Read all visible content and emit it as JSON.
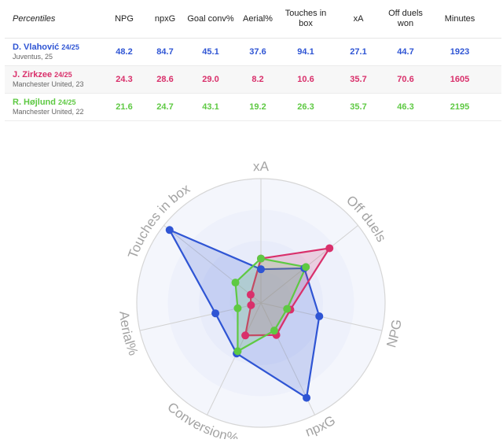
{
  "table": {
    "percentiles_label": "Percentiles",
    "columns": [
      "NPG",
      "npxG",
      "Goal conv%",
      "Aerial%",
      "Touches in box",
      "xA",
      "Off duels won",
      "Minutes"
    ],
    "rows": [
      {
        "name": "D. Vlahović",
        "season": "24/25",
        "team": "Juventus, 25",
        "color": "#2f55d4",
        "values": [
          "48.2",
          "84.7",
          "45.1",
          "37.6",
          "94.1",
          "27.1",
          "44.7",
          "1923"
        ]
      },
      {
        "name": "J. Zirkzee",
        "season": "24/25",
        "team": "Manchester United, 23",
        "color": "#d9306b",
        "values": [
          "24.3",
          "28.6",
          "29.0",
          "8.2",
          "10.6",
          "35.7",
          "70.6",
          "1605"
        ]
      },
      {
        "name": "R. Højlund",
        "season": "24/25",
        "team": "Manchester United, 22",
        "color": "#5ec943",
        "values": [
          "21.6",
          "24.7",
          "43.1",
          "19.2",
          "26.3",
          "35.7",
          "46.3",
          "2195"
        ]
      }
    ]
  },
  "chart_data": {
    "type": "radar",
    "axes": [
      "xA",
      "Off duels",
      "NPG",
      "npxG",
      "Conversion%",
      "Aerial%",
      "Touches in box"
    ],
    "range": [
      0,
      100
    ],
    "series": [
      {
        "name": "D. Vlahović",
        "color": "#2f55d4",
        "values": [
          27.1,
          44.7,
          48.2,
          84.7,
          45.1,
          37.6,
          94.1
        ]
      },
      {
        "name": "J. Zirkzee",
        "color": "#d9306b",
        "values": [
          35.7,
          70.6,
          24.3,
          28.6,
          29.0,
          8.2,
          10.6
        ]
      },
      {
        "name": "R. Højlund",
        "color": "#5ec943",
        "values": [
          35.7,
          46.3,
          21.6,
          24.7,
          43.1,
          19.2,
          26.3
        ]
      }
    ]
  }
}
